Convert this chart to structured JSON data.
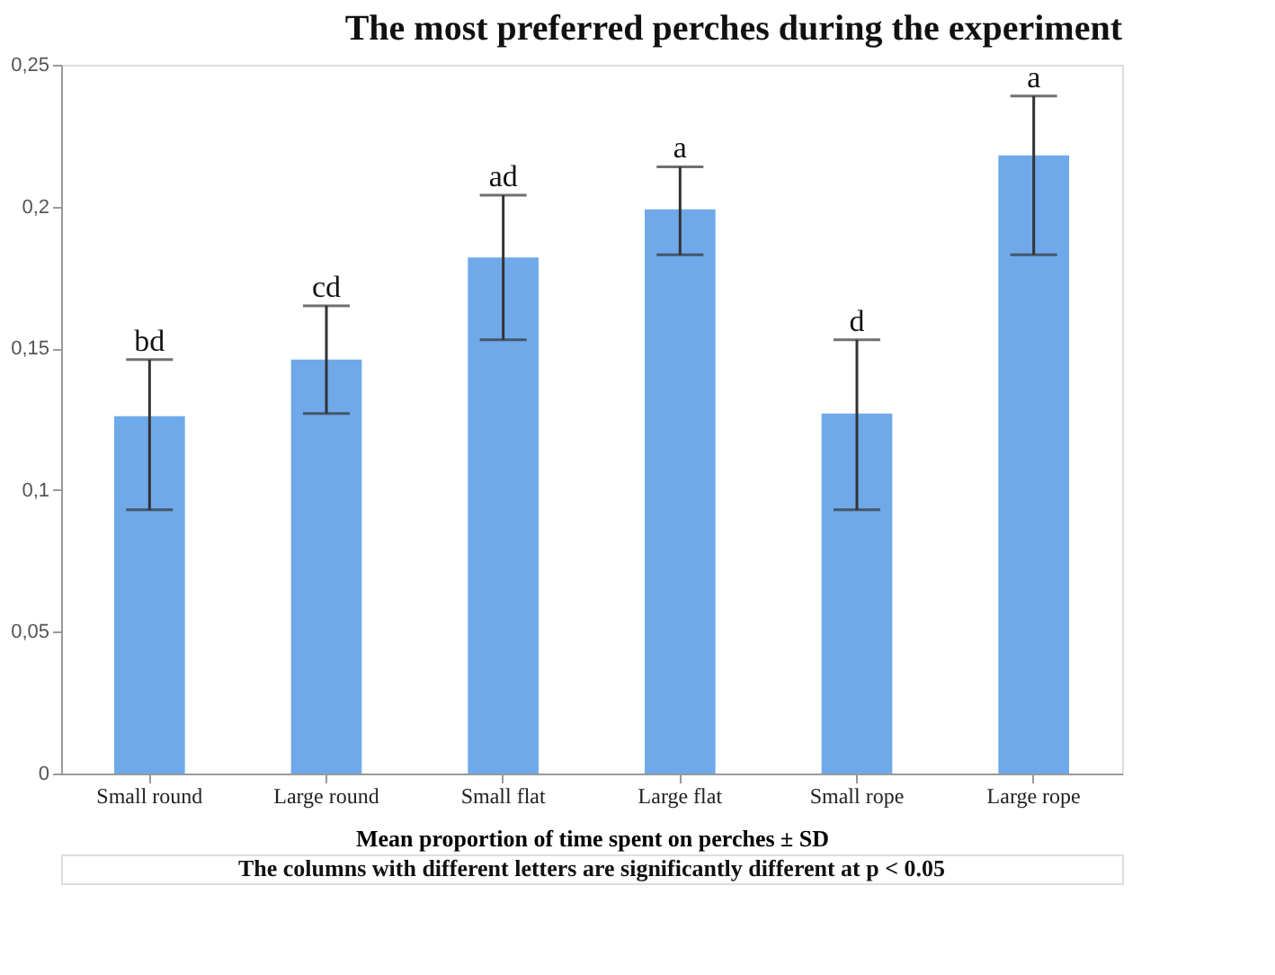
{
  "chart_data": {
    "type": "bar",
    "title": "The most preferred perches during the experiment",
    "categories": [
      "Small round",
      "Large round",
      "Small flat",
      "Large flat",
      "Small rope",
      "Large rope"
    ],
    "values": [
      0.126,
      0.146,
      0.182,
      0.199,
      0.127,
      0.218
    ],
    "errors": [
      [
        0.093,
        0.146
      ],
      [
        0.127,
        0.165
      ],
      [
        0.153,
        0.204
      ],
      [
        0.183,
        0.214
      ],
      [
        0.093,
        0.153
      ],
      [
        0.183,
        0.239
      ]
    ],
    "color": "#6fa9ea",
    "xlabel": "Mean proportion of time spent on perches ± SD",
    "annotations": [
      {
        "text": "bd",
        "x": "Small round",
        "y": 0.146
      },
      {
        "text": "cd",
        "x": "Large round",
        "y": 0.165
      },
      {
        "text": "ad",
        "x": "Small flat",
        "y": 0.204
      },
      {
        "text": "a",
        "x": "Large flat",
        "y": 0.214
      },
      {
        "text": "d",
        "x": "Small rope",
        "y": 0.153
      },
      {
        "text": "a",
        "x": "Large rope",
        "y": 0.239
      },
      "The columns with different letters are significantly different at p < 0.05"
    ],
    "ylim": [
      0,
      0.25
    ],
    "yticks": [
      {
        "value": 0,
        "label": "0"
      },
      {
        "value": 0.05,
        "label": "0,05"
      },
      {
        "value": 0.1,
        "label": "0,1"
      },
      {
        "value": 0.15,
        "label": "0,15"
      },
      {
        "value": 0.2,
        "label": "0,2"
      },
      {
        "value": 0.25,
        "label": "0,25"
      }
    ],
    "grid": false
  }
}
